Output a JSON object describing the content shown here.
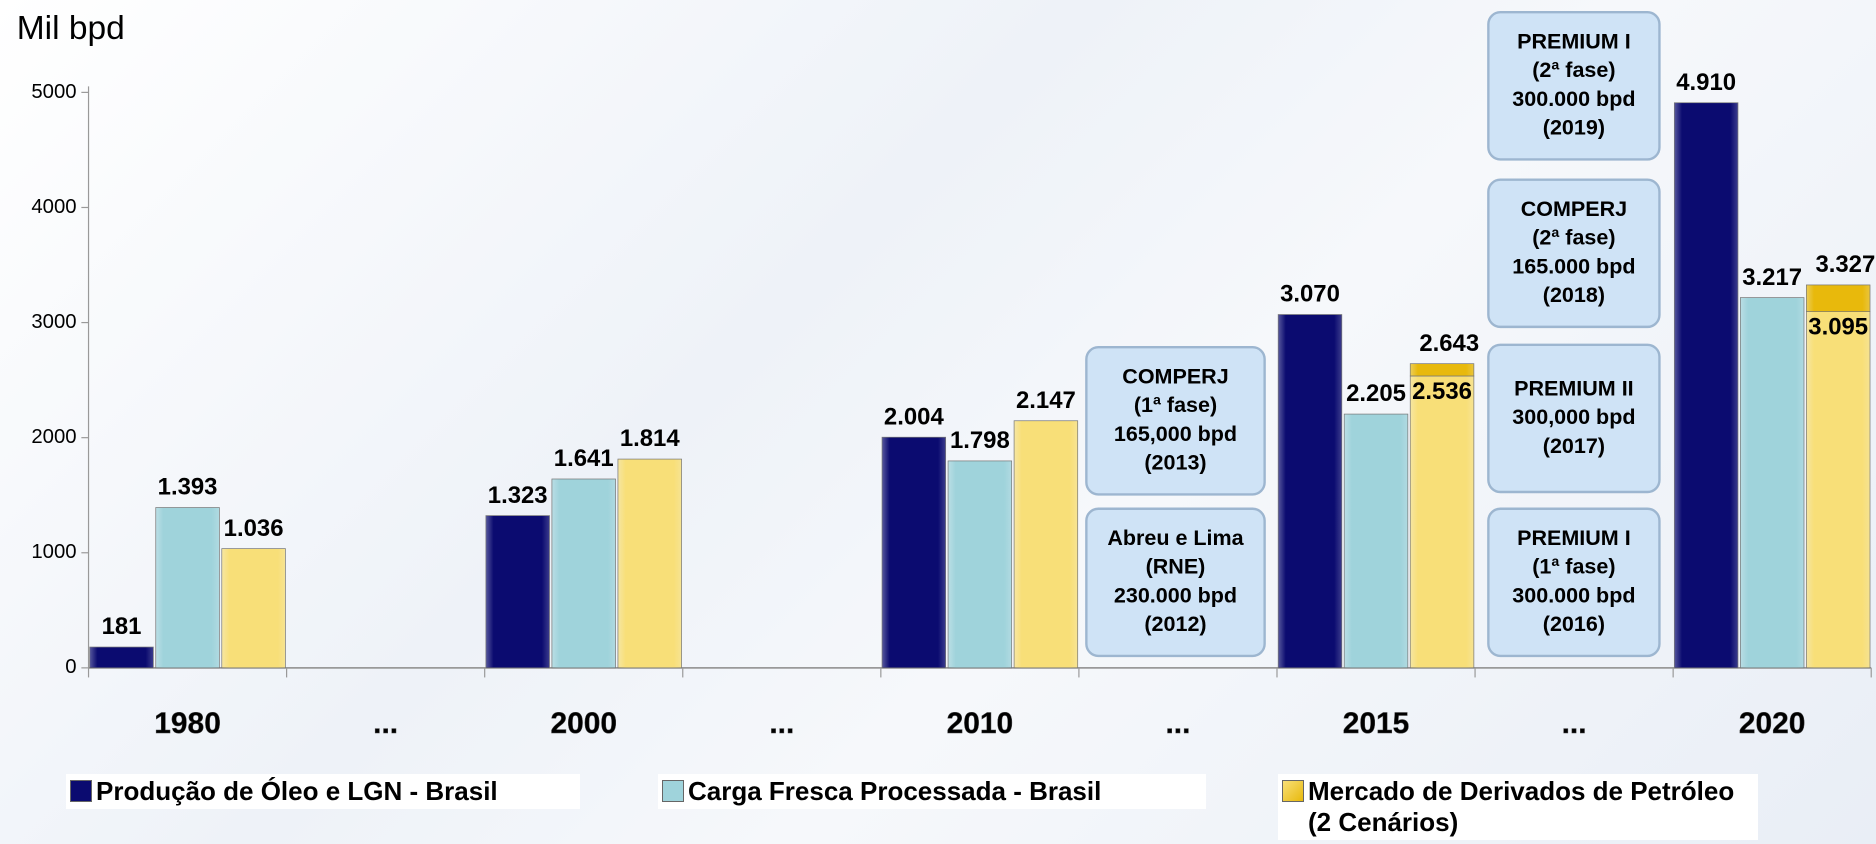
{
  "chart_data": {
    "type": "bar",
    "y_axis_label": "Mil bpd",
    "categories": [
      "1980",
      "...",
      "2000",
      "...",
      "2010",
      "...",
      "2015",
      "...",
      "2020"
    ],
    "ylim": [
      0,
      5000
    ],
    "yticks": [
      0,
      1000,
      2000,
      3000,
      4000,
      5000
    ],
    "series": [
      {
        "name": "Produção de Óleo e LGN - Brasil",
        "color": "#0b0b70",
        "values": [
          181,
          null,
          1323,
          null,
          2004,
          null,
          3070,
          null,
          4910
        ],
        "value_labels": [
          "181",
          null,
          "1.323",
          null,
          "2.004",
          null,
          "3.070",
          null,
          "4.910"
        ]
      },
      {
        "name": "Carga Fresca Processada - Brasil",
        "color": "#9fd3db",
        "values": [
          1393,
          null,
          1641,
          null,
          1798,
          null,
          2205,
          null,
          3217
        ],
        "value_labels": [
          "1.393",
          null,
          "1.641",
          null,
          "1.798",
          null,
          "2.205",
          null,
          "3.217"
        ]
      },
      {
        "name": "Mercado de Derivados de Petróleo (2 Cenários)",
        "color": "#f8df78",
        "alt_color": "#e8b90c",
        "values": [
          1036,
          null,
          1814,
          null,
          2147,
          null,
          2536,
          null,
          3095
        ],
        "value_labels": [
          "1.036",
          null,
          "1.814",
          null,
          "2.147",
          null,
          "2.536",
          null,
          "3.095"
        ],
        "alt_values": [
          null,
          null,
          null,
          null,
          null,
          null,
          2643,
          null,
          3327
        ],
        "alt_value_labels": [
          null,
          null,
          null,
          null,
          null,
          null,
          "2.643",
          null,
          "3.327"
        ]
      }
    ],
    "annotations": [
      {
        "lines": [
          "COMPERJ",
          "(1ª  fase)",
          "165,000 bpd",
          "(2013)"
        ]
      },
      {
        "lines": [
          "Abreu e Lima",
          "(RNE)",
          "230.000 bpd",
          "(2012)"
        ]
      },
      {
        "lines": [
          "PREMIUM I",
          "(2ª fase)",
          "300.000 bpd",
          "(2019)"
        ]
      },
      {
        "lines": [
          "COMPERJ",
          "(2ª fase)",
          "165.000 bpd",
          "(2018)"
        ]
      },
      {
        "lines": [
          "PREMIUM II",
          "300,000 bpd",
          "(2017)"
        ]
      },
      {
        "lines": [
          "PREMIUM I",
          "(1ª fase)",
          "300.000 bpd",
          "(2016)"
        ]
      }
    ]
  }
}
